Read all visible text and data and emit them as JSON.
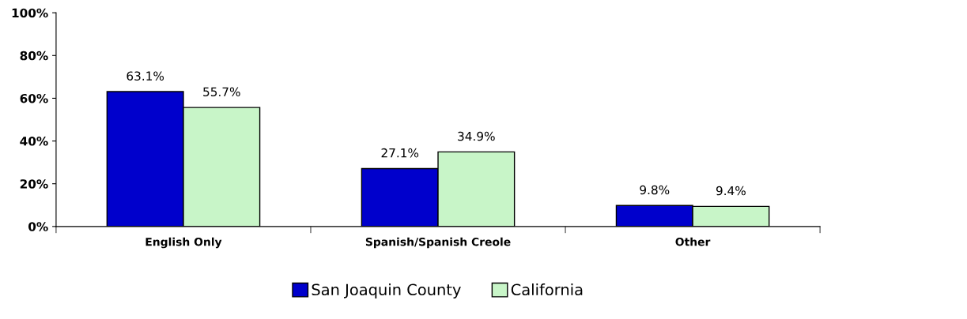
{
  "chart_data": {
    "type": "bar",
    "categories": [
      "English Only",
      "Spanish/Spanish Creole",
      "Other"
    ],
    "series": [
      {
        "name": "San Joaquin County",
        "color": "#0000cc",
        "values": [
          63.1,
          27.1,
          9.8
        ],
        "value_labels": [
          "63.1%",
          "27.1%",
          "9.8%"
        ]
      },
      {
        "name": "California",
        "color": "#c8f5c8",
        "values": [
          55.7,
          34.9,
          9.4
        ],
        "value_labels": [
          "55.7%",
          "34.9%",
          "9.4%"
        ]
      }
    ],
    "ylim": [
      0,
      100
    ],
    "yticks": [
      {
        "value": 0,
        "label": "0%"
      },
      {
        "value": 20,
        "label": "20%"
      },
      {
        "value": 40,
        "label": "40%"
      },
      {
        "value": 60,
        "label": "60%"
      },
      {
        "value": 80,
        "label": "80%"
      },
      {
        "value": 100,
        "label": "100%"
      }
    ],
    "grid": false,
    "legend": "bottom"
  }
}
